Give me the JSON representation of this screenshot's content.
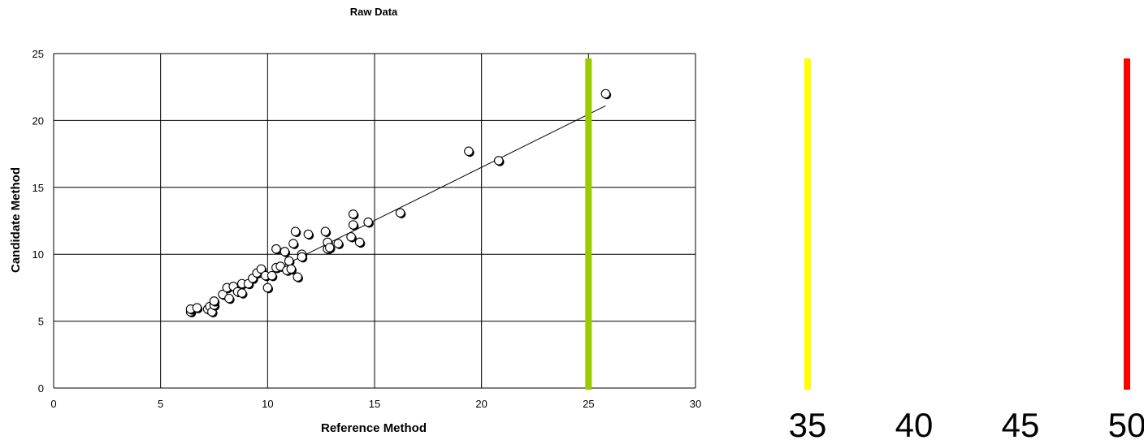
{
  "chart_data": {
    "type": "scatter",
    "title": "Raw Data",
    "xlabel": "Reference Method",
    "ylabel": "Candidate Method",
    "xlim": [
      0,
      30
    ],
    "ylim": [
      0,
      25
    ],
    "x_ticks": [
      0,
      5,
      10,
      15,
      20,
      25,
      30
    ],
    "y_ticks": [
      0,
      5,
      10,
      15,
      20,
      25
    ],
    "grid": true,
    "points": [
      {
        "x": 6.4,
        "y": 5.7
      },
      {
        "x": 6.4,
        "y": 5.9
      },
      {
        "x": 6.7,
        "y": 6.0
      },
      {
        "x": 7.2,
        "y": 5.9
      },
      {
        "x": 7.3,
        "y": 6.1
      },
      {
        "x": 7.4,
        "y": 5.7
      },
      {
        "x": 7.5,
        "y": 6.2
      },
      {
        "x": 7.5,
        "y": 6.5
      },
      {
        "x": 7.9,
        "y": 7.0
      },
      {
        "x": 8.1,
        "y": 7.5
      },
      {
        "x": 8.2,
        "y": 6.7
      },
      {
        "x": 8.4,
        "y": 7.6
      },
      {
        "x": 8.6,
        "y": 7.2
      },
      {
        "x": 8.8,
        "y": 7.1
      },
      {
        "x": 8.8,
        "y": 7.8
      },
      {
        "x": 9.1,
        "y": 7.8
      },
      {
        "x": 9.3,
        "y": 8.2
      },
      {
        "x": 9.5,
        "y": 8.6
      },
      {
        "x": 9.7,
        "y": 8.9
      },
      {
        "x": 9.9,
        "y": 8.4
      },
      {
        "x": 10.0,
        "y": 7.5
      },
      {
        "x": 10.2,
        "y": 8.4
      },
      {
        "x": 10.4,
        "y": 9.0
      },
      {
        "x": 10.4,
        "y": 10.4
      },
      {
        "x": 10.6,
        "y": 9.1
      },
      {
        "x": 10.8,
        "y": 10.2
      },
      {
        "x": 10.9,
        "y": 8.8
      },
      {
        "x": 11.0,
        "y": 9.5
      },
      {
        "x": 11.1,
        "y": 8.9
      },
      {
        "x": 11.2,
        "y": 10.8
      },
      {
        "x": 11.3,
        "y": 11.7
      },
      {
        "x": 11.4,
        "y": 8.3
      },
      {
        "x": 11.6,
        "y": 10.0
      },
      {
        "x": 11.6,
        "y": 9.8
      },
      {
        "x": 11.9,
        "y": 11.5
      },
      {
        "x": 12.7,
        "y": 11.7
      },
      {
        "x": 12.8,
        "y": 10.4
      },
      {
        "x": 12.8,
        "y": 10.9
      },
      {
        "x": 12.9,
        "y": 10.5
      },
      {
        "x": 13.3,
        "y": 10.8
      },
      {
        "x": 13.9,
        "y": 11.3
      },
      {
        "x": 14.0,
        "y": 12.2
      },
      {
        "x": 14.0,
        "y": 13.0
      },
      {
        "x": 14.3,
        "y": 10.9
      },
      {
        "x": 14.7,
        "y": 12.4
      },
      {
        "x": 16.2,
        "y": 13.1
      },
      {
        "x": 19.4,
        "y": 17.7
      },
      {
        "x": 20.8,
        "y": 17.0
      },
      {
        "x": 25.8,
        "y": 22.0
      }
    ],
    "trendline": {
      "x": [
        10.8,
        25.8
      ],
      "y": [
        9.2,
        21.1
      ]
    },
    "reference_line": {
      "x": 25,
      "color": "#99cc00"
    }
  },
  "scale_bar": {
    "ticks": [
      35,
      40,
      45,
      50
    ],
    "lines": [
      {
        "value": 35,
        "color": "#ffff00"
      },
      {
        "value": 50,
        "color": "#ff0000"
      }
    ]
  }
}
